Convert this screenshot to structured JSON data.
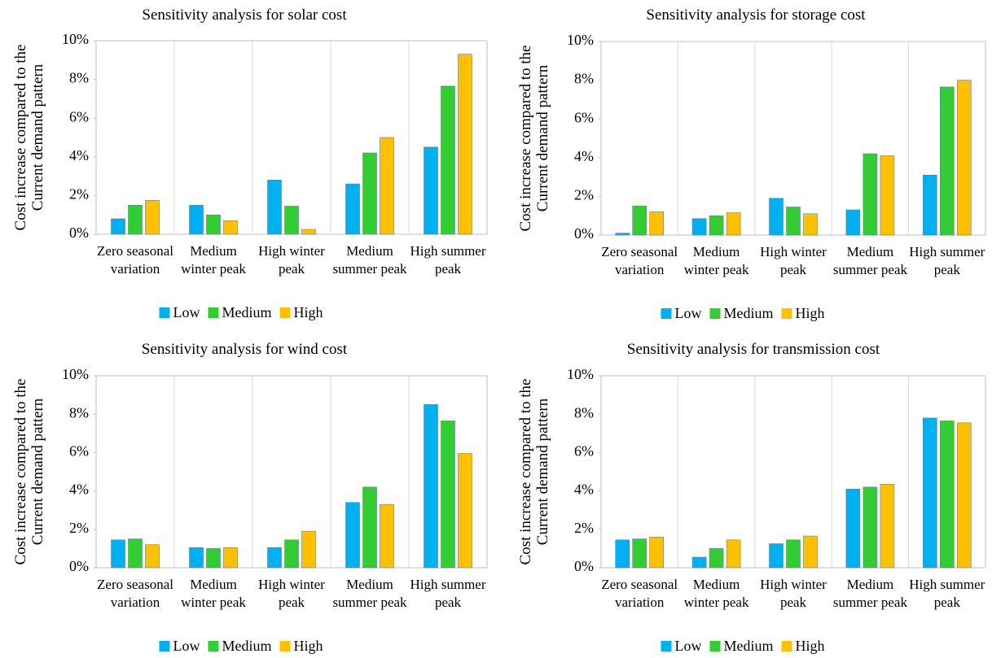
{
  "chart_data": [
    {
      "type": "bar",
      "title": "Sensitivity analysis for solar cost",
      "ylabel": "Cost increase compared to the Current demand pattern",
      "categories": [
        "Zero seasonal variation",
        "Medium winter peak",
        "High winter peak",
        "Medium summer peak",
        "High summer peak"
      ],
      "series": [
        {
          "name": "Low",
          "color": "#00b0f0",
          "values": [
            0.8,
            1.5,
            2.8,
            2.6,
            4.5
          ]
        },
        {
          "name": "Medium",
          "color": "#33cc33",
          "values": [
            1.5,
            1.0,
            1.45,
            4.2,
            7.65
          ]
        },
        {
          "name": "High",
          "color": "#ffc000",
          "values": [
            1.75,
            0.7,
            0.25,
            5.0,
            9.3
          ]
        }
      ],
      "ylim": [
        0,
        10
      ],
      "yticks": [
        {
          "value": 0,
          "label": "0%"
        },
        {
          "value": 2,
          "label": "2%"
        },
        {
          "value": 4,
          "label": "4%"
        },
        {
          "value": 6,
          "label": "6%"
        },
        {
          "value": 8,
          "label": "8%"
        },
        {
          "value": 10,
          "label": "10%"
        }
      ],
      "legend": "bottom"
    },
    {
      "type": "bar",
      "title": "Sensitivity analysis for storage cost",
      "ylabel": "Cost increase compared to the Current demand pattern",
      "categories": [
        "Zero seasonal variation",
        "Medium winter peak",
        "High winter peak",
        "Medium summer peak",
        "High summer peak"
      ],
      "series": [
        {
          "name": "Low",
          "color": "#00b0f0",
          "values": [
            0.1,
            0.85,
            1.9,
            1.3,
            3.1
          ]
        },
        {
          "name": "Medium",
          "color": "#33cc33",
          "values": [
            1.5,
            1.0,
            1.45,
            4.2,
            7.65
          ]
        },
        {
          "name": "High",
          "color": "#ffc000",
          "values": [
            1.2,
            1.15,
            1.1,
            4.1,
            8.0
          ]
        }
      ],
      "ylim": [
        0,
        10
      ],
      "yticks": [
        {
          "value": 0,
          "label": "0%"
        },
        {
          "value": 2,
          "label": "2%"
        },
        {
          "value": 4,
          "label": "4%"
        },
        {
          "value": 6,
          "label": "6%"
        },
        {
          "value": 8,
          "label": "8%"
        },
        {
          "value": 10,
          "label": "10%"
        }
      ],
      "legend": "bottom"
    },
    {
      "type": "bar",
      "title": "Sensitivity analysis for wind cost",
      "ylabel": "Cost increase compared to the Current demand pattern",
      "categories": [
        "Zero seasonal variation",
        "Medium winter peak",
        "High winter peak",
        "Medium summer peak",
        "High summer peak"
      ],
      "series": [
        {
          "name": "Low",
          "color": "#00b0f0",
          "values": [
            1.45,
            1.05,
            1.05,
            3.4,
            8.5
          ]
        },
        {
          "name": "Medium",
          "color": "#33cc33",
          "values": [
            1.5,
            1.0,
            1.45,
            4.2,
            7.65
          ]
        },
        {
          "name": "High",
          "color": "#ffc000",
          "values": [
            1.2,
            1.05,
            1.9,
            3.3,
            5.95
          ]
        }
      ],
      "ylim": [
        0,
        10
      ],
      "yticks": [
        {
          "value": 0,
          "label": "0%"
        },
        {
          "value": 2,
          "label": "2%"
        },
        {
          "value": 4,
          "label": "4%"
        },
        {
          "value": 6,
          "label": "6%"
        },
        {
          "value": 8,
          "label": "8%"
        },
        {
          "value": 10,
          "label": "10%"
        }
      ],
      "legend": "bottom"
    },
    {
      "type": "bar",
      "title": "Sensitivity analysis for transmission cost",
      "ylabel": "Cost increase compared to the Current demand pattern",
      "categories": [
        "Zero seasonal variation",
        "Medium winter peak",
        "High winter peak",
        "Medium summer peak",
        "High summer peak"
      ],
      "series": [
        {
          "name": "Low",
          "color": "#00b0f0",
          "values": [
            1.45,
            0.55,
            1.25,
            4.1,
            7.8
          ]
        },
        {
          "name": "Medium",
          "color": "#33cc33",
          "values": [
            1.5,
            1.0,
            1.45,
            4.2,
            7.65
          ]
        },
        {
          "name": "High",
          "color": "#ffc000",
          "values": [
            1.6,
            1.45,
            1.65,
            4.35,
            7.55
          ]
        }
      ],
      "ylim": [
        0,
        10
      ],
      "yticks": [
        {
          "value": 0,
          "label": "0%"
        },
        {
          "value": 2,
          "label": "2%"
        },
        {
          "value": 4,
          "label": "4%"
        },
        {
          "value": 6,
          "label": "6%"
        },
        {
          "value": 8,
          "label": "8%"
        },
        {
          "value": 10,
          "label": "10%"
        }
      ],
      "legend": "bottom"
    }
  ]
}
